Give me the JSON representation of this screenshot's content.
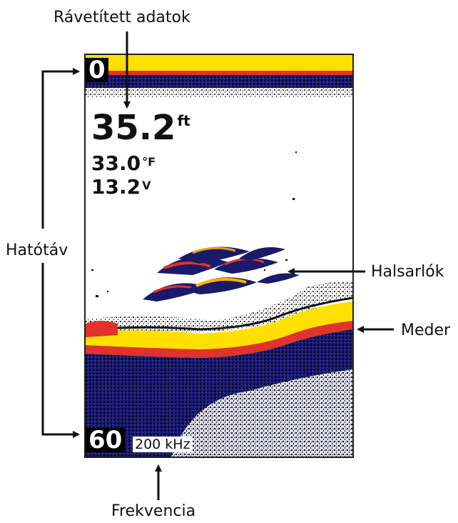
{
  "labels": {
    "projected_data": "Rávetített adatok",
    "range": "Hatótáv",
    "fish_arches": "Halsarlók",
    "bottom": "Meder",
    "frequency": "Frekvencia"
  },
  "screen": {
    "range_top": "0",
    "range_bottom": "60",
    "frequency": "200 kHz",
    "depth_value": "35.2",
    "depth_unit": "ft",
    "temperature_value": "33.0",
    "temperature_unit": "°F",
    "voltage_value": "13.2",
    "voltage_unit": "V"
  },
  "colors": {
    "accent": "#1a1a8c",
    "echo_strong": "#ffe000",
    "echo_mid": "#e0332b",
    "echo_weak": "#2a2a9a"
  }
}
